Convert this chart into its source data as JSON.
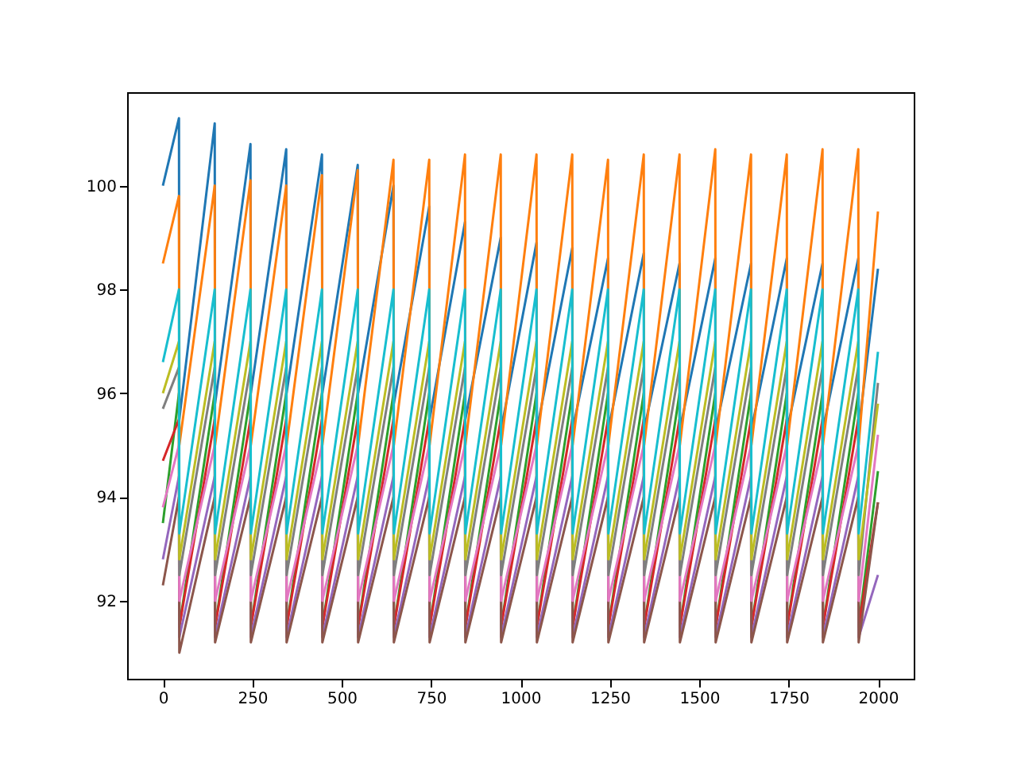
{
  "chart_data": {
    "type": "line",
    "marker": "none",
    "line_style": "solid",
    "grid": false,
    "legend": false,
    "x": [
      0,
      45,
      46,
      145,
      146,
      245,
      246,
      345,
      346,
      445,
      446,
      545,
      546,
      645,
      646,
      745,
      746,
      845,
      846,
      945,
      946,
      1045,
      1046,
      1145,
      1146,
      1245,
      1246,
      1345,
      1346,
      1445,
      1446,
      1545,
      1546,
      1645,
      1646,
      1745,
      1746,
      1845,
      1846,
      1945,
      1946,
      2000
    ],
    "xlim": [
      -100,
      2100
    ],
    "xticks": [
      0,
      250,
      500,
      750,
      1000,
      1250,
      1500,
      1750,
      2000
    ],
    "ylim": [
      90.5,
      101.8
    ],
    "yticks": [
      92,
      94,
      96,
      98,
      100
    ],
    "series": [
      {
        "color": "#1f77b4",
        "values": [
          100,
          101.3,
          95.5,
          101.2,
          95.8,
          100.8,
          96,
          100.7,
          96,
          100.6,
          96,
          100.4,
          96,
          100,
          95.8,
          99.6,
          95.5,
          99.3,
          95.5,
          99,
          95.3,
          98.9,
          95.3,
          98.8,
          95.3,
          98.6,
          95.3,
          98.7,
          95.3,
          98.5,
          95.3,
          98.6,
          95.3,
          98.5,
          95.3,
          98.6,
          95.3,
          98.5,
          95.3,
          98.6,
          95.3,
          98.4
        ]
      },
      {
        "color": "#ff7f0e",
        "values": [
          98.5,
          99.8,
          95,
          100,
          95,
          100.1,
          95,
          100,
          95,
          100.2,
          95,
          100.3,
          95,
          100.5,
          95,
          100.5,
          95,
          100.6,
          95,
          100.6,
          95,
          100.6,
          95,
          100.6,
          95,
          100.5,
          95,
          100.6,
          95,
          100.6,
          95,
          100.7,
          95,
          100.6,
          95,
          100.6,
          95,
          100.7,
          95,
          100.7,
          95,
          99.5
        ]
      },
      {
        "color": "#2ca02c",
        "values": [
          93.5,
          96,
          91.5,
          96,
          91.5,
          96,
          91.5,
          96,
          91.5,
          96,
          91.5,
          96,
          91.5,
          96,
          91.5,
          96,
          91.5,
          96,
          91.5,
          96,
          91.5,
          96,
          91.5,
          96,
          91.5,
          96,
          91.5,
          96,
          91.5,
          96,
          91.5,
          96,
          91.5,
          96,
          91.5,
          96,
          91.5,
          96,
          91.5,
          96,
          91.5,
          94.5
        ]
      },
      {
        "color": "#d62728",
        "values": [
          94.7,
          95.5,
          91.5,
          95.5,
          91.5,
          95.5,
          91.5,
          95.5,
          91.5,
          95.5,
          91.5,
          95.5,
          91.5,
          95.5,
          91.5,
          95.5,
          91.5,
          95.5,
          91.5,
          95.5,
          91.5,
          95.5,
          91.5,
          95.5,
          91.5,
          95.5,
          91.5,
          95.5,
          91.5,
          95.5,
          91.5,
          95.5,
          91.5,
          95.5,
          91.5,
          95.5,
          91.5,
          95.5,
          91.5,
          95.5,
          91.5,
          93.9
        ]
      },
      {
        "color": "#9467bd",
        "values": [
          92.8,
          94.4,
          91.3,
          94.4,
          91.3,
          94.4,
          91.3,
          94.4,
          91.3,
          94.4,
          91.3,
          94.4,
          91.3,
          94.4,
          91.3,
          94.4,
          91.3,
          94.4,
          91.3,
          94.4,
          91.3,
          94.4,
          91.3,
          94.4,
          91.3,
          94.4,
          91.3,
          94.4,
          91.3,
          94.4,
          91.3,
          94.4,
          91.3,
          94.4,
          91.3,
          94.4,
          91.3,
          94.4,
          91.3,
          94.4,
          91.3,
          92.5
        ]
      },
      {
        "color": "#8c564b",
        "values": [
          92.3,
          94,
          91,
          94,
          91.2,
          94,
          91.2,
          94,
          91.2,
          94,
          91.2,
          94,
          91.2,
          94,
          91.2,
          94,
          91.2,
          94,
          91.2,
          94,
          91.2,
          94,
          91.2,
          94,
          91.2,
          94,
          91.2,
          94,
          91.2,
          94,
          91.2,
          94,
          91.2,
          94,
          91.2,
          94,
          91.2,
          94,
          91.2,
          94,
          91.2,
          93.9
        ]
      },
      {
        "color": "#e377c2",
        "values": [
          93.8,
          95,
          92,
          95,
          92,
          95,
          92,
          95,
          92,
          95,
          92,
          95,
          92,
          95,
          92,
          95,
          92,
          95,
          92,
          95,
          92,
          95,
          92,
          95,
          92,
          95,
          92,
          95,
          92,
          95,
          92,
          95,
          92,
          95,
          92,
          95,
          92,
          95,
          92,
          95,
          92,
          95.2
        ]
      },
      {
        "color": "#7f7f7f",
        "values": [
          95.7,
          96.5,
          92.5,
          96.5,
          92.5,
          96.5,
          92.5,
          96.5,
          92.5,
          96.5,
          92.5,
          96.5,
          92.5,
          96.5,
          92.5,
          96.5,
          92.5,
          96.5,
          92.5,
          96.5,
          92.5,
          96.5,
          92.5,
          96.5,
          92.5,
          96.5,
          92.5,
          96.5,
          92.5,
          96.5,
          92.5,
          96.5,
          92.5,
          96.5,
          92.5,
          96.5,
          92.5,
          96.5,
          92.5,
          96.5,
          92.5,
          96.2
        ]
      },
      {
        "color": "#bcbd22",
        "values": [
          96,
          97,
          92.8,
          97,
          92.8,
          97,
          92.8,
          97,
          92.8,
          97,
          92.8,
          97,
          92.8,
          97,
          92.8,
          97,
          92.8,
          97,
          92.8,
          97,
          92.8,
          97,
          92.8,
          97,
          92.8,
          97,
          92.8,
          97,
          92.8,
          97,
          92.8,
          97,
          92.8,
          97,
          92.8,
          97,
          92.8,
          97,
          92.8,
          97,
          92.8,
          95.8
        ]
      },
      {
        "color": "#17becf",
        "values": [
          96.6,
          98,
          93.3,
          98,
          93.3,
          98,
          93.3,
          98,
          93.3,
          98,
          93.3,
          98,
          93.3,
          98,
          93.3,
          98,
          93.3,
          98,
          93.3,
          98,
          93.3,
          98,
          93.3,
          98,
          93.3,
          98,
          93.3,
          98,
          93.3,
          98,
          93.3,
          98,
          93.3,
          98,
          93.3,
          98,
          93.3,
          98,
          93.3,
          98,
          93.3,
          96.8
        ]
      }
    ]
  }
}
